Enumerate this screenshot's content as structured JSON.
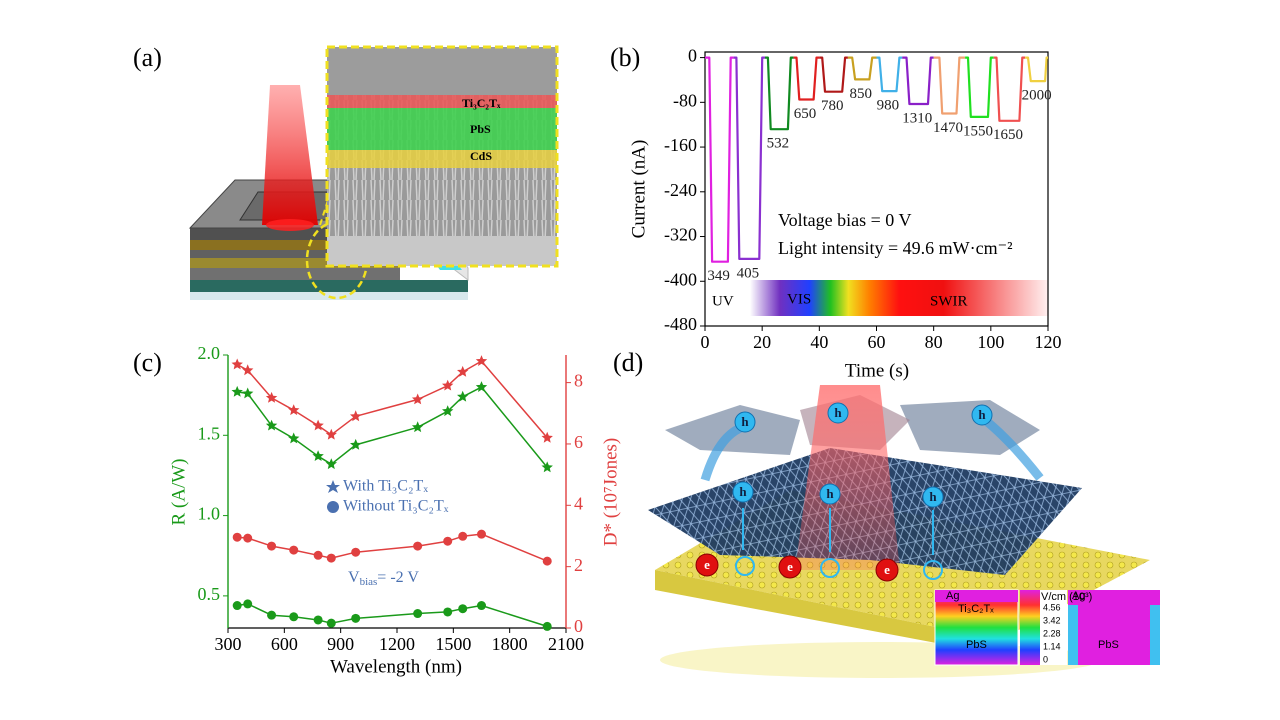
{
  "figure": {
    "panel_labels": [
      "(a)",
      "(b)",
      "(c)",
      "(d)"
    ]
  },
  "panel_a": {
    "layer_labels": [
      "Ti₃C₂Tₓ",
      "PbS",
      "CdS"
    ]
  },
  "panel_d": {
    "carrier_labels": [
      "h",
      "e"
    ],
    "inset_labels": [
      "Ag",
      "Ti₃C₂Tₓ",
      "PbS",
      "V/cm (10³)",
      "Ag",
      "PbS"
    ],
    "colorbar_ticks": [
      4.56,
      3.42,
      2.28,
      1.14,
      0
    ]
  },
  "chart_data": [
    {
      "type": "line",
      "y_label": "Current (nA)",
      "x_label": "Time (s)",
      "xlim": [
        0,
        120
      ],
      "xticks": [
        0,
        20,
        40,
        60,
        80,
        100,
        120
      ],
      "ylim": [
        -480,
        10
      ],
      "yticks": [
        0,
        -80,
        -160,
        -240,
        -320,
        -400,
        -480
      ],
      "annotations": [
        "Voltage bias = 0 V",
        "Light intensity = 49.6 mW·cm⁻²",
        "UV",
        "VIS",
        "SWIR"
      ],
      "series": [
        {
          "name": "349",
          "color": "#e020e0",
          "x": [
            0,
            1.5,
            2.5,
            8,
            9,
            10
          ],
          "values": [
            0,
            0,
            -365,
            -365,
            0,
            0
          ]
        },
        {
          "name": "405",
          "color": "#8a30d0",
          "x": [
            10,
            11,
            12,
            19,
            20,
            21
          ],
          "values": [
            0,
            0,
            -360,
            -360,
            0,
            0
          ]
        },
        {
          "name": "532",
          "color": "#108a20",
          "x": [
            21,
            22,
            23,
            29,
            30,
            31
          ],
          "values": [
            0,
            0,
            -128,
            -128,
            0,
            0
          ]
        },
        {
          "name": "650",
          "color": "#e02020",
          "x": [
            31,
            32,
            33,
            38,
            39,
            40
          ],
          "values": [
            0,
            0,
            -75,
            -75,
            0,
            0
          ]
        },
        {
          "name": "780",
          "color": "#b01818",
          "x": [
            40,
            41,
            42,
            48,
            49,
            50
          ],
          "values": [
            0,
            0,
            -61,
            -61,
            0,
            0
          ]
        },
        {
          "name": "850",
          "color": "#c8a020",
          "x": [
            50,
            51.5,
            52.5,
            57.5,
            58.5,
            60
          ],
          "values": [
            0,
            0,
            -39,
            -39,
            0,
            0
          ]
        },
        {
          "name": "980",
          "color": "#40b0e8",
          "x": [
            60,
            61,
            62,
            67,
            68,
            69
          ],
          "values": [
            0,
            0,
            -60,
            -60,
            0,
            0
          ]
        },
        {
          "name": "1310",
          "color": "#8a20c8",
          "x": [
            69,
            70.5,
            71.5,
            78,
            79,
            80
          ],
          "values": [
            0,
            0,
            -83,
            -83,
            0,
            0
          ]
        },
        {
          "name": "1470",
          "color": "#f0a070",
          "x": [
            80,
            82,
            83,
            88,
            89,
            91
          ],
          "values": [
            0,
            0,
            -100,
            -100,
            0,
            0
          ]
        },
        {
          "name": "1550",
          "color": "#20e020",
          "x": [
            91,
            92,
            93,
            99,
            100,
            101
          ],
          "values": [
            0,
            0,
            -106,
            -106,
            0,
            0
          ]
        },
        {
          "name": "1650",
          "color": "#f05050",
          "x": [
            101,
            102,
            103,
            110,
            111,
            112
          ],
          "values": [
            0,
            0,
            -113,
            -113,
            0,
            0
          ]
        },
        {
          "name": "2000",
          "color": "#f0d040",
          "x": [
            112,
            113,
            114,
            119,
            119.5,
            120
          ],
          "values": [
            0,
            0,
            -42,
            -42,
            0,
            0
          ]
        }
      ]
    },
    {
      "type": "line",
      "x_label": "Wavelength (nm)",
      "y_label": "R (A/W)",
      "y2_label": "D* (10⁷Jones)",
      "xlim": [
        300,
        2100
      ],
      "xticks": [
        300,
        600,
        900,
        1200,
        1500,
        1800,
        2100
      ],
      "ylim": [
        0.3,
        2.0
      ],
      "yticks": [
        0.5,
        {
          "value": 1,
          "label": "1.0"
        },
        1.5,
        {
          "value": 2,
          "label": "2.0"
        }
      ],
      "y2lim": [
        0,
        8.9
      ],
      "y2ticks": [
        0,
        2,
        4,
        6,
        8
      ],
      "y_color": "#1a9a1a",
      "y2_color": "#e04040",
      "legend": [
        {
          "marker": "star",
          "label": "With Ti₃C₂Tₓ"
        },
        {
          "marker": "circle",
          "label": "Without Ti₃C₂Tₓ"
        }
      ],
      "legend_color": "#4a70b0",
      "bias_note": [
        "V",
        "bias",
        "= -2 V"
      ],
      "x": [
        349,
        405,
        532,
        650,
        780,
        850,
        980,
        1310,
        1470,
        1550,
        1650,
        2000
      ],
      "series": [
        {
          "color": "#1a9a1a",
          "marker": "star",
          "axis": "y",
          "values": [
            1.77,
            1.76,
            1.56,
            1.48,
            1.37,
            1.32,
            1.44,
            1.55,
            1.65,
            1.74,
            1.8,
            1.3
          ]
        },
        {
          "color": "#e04040",
          "marker": "star",
          "axis": "y2",
          "values": [
            8.59,
            8.4,
            7.5,
            7.1,
            6.6,
            6.3,
            6.9,
            7.45,
            7.9,
            8.35,
            8.7,
            6.2
          ]
        },
        {
          "color": "#1a9a1a",
          "marker": "circle",
          "axis": "y",
          "values": [
            0.44,
            0.45,
            0.38,
            0.37,
            0.35,
            0.33,
            0.36,
            0.39,
            0.4,
            0.42,
            0.44,
            0.31
          ]
        },
        {
          "color": "#e04040",
          "marker": "circle",
          "axis": "y2",
          "values": [
            2.96,
            2.93,
            2.67,
            2.54,
            2.37,
            2.28,
            2.47,
            2.67,
            2.83,
            2.99,
            3.06,
            2.18
          ]
        }
      ]
    }
  ]
}
